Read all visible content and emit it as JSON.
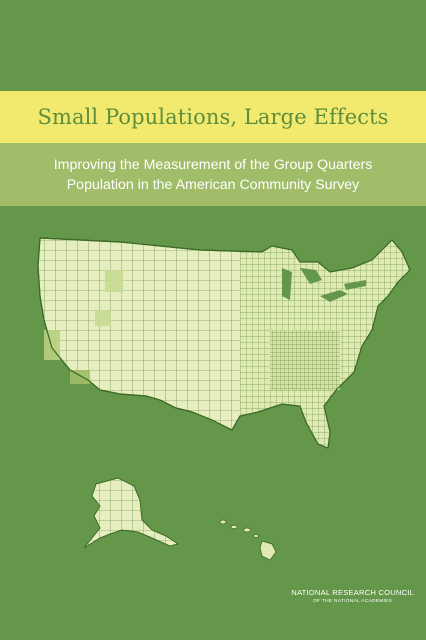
{
  "cover": {
    "title": "Small Populations, Large Effects",
    "subtitle_line1": "Improving the Measurement of the Group Quarters",
    "subtitle_line2": "Population in the American Community Survey",
    "publisher": "NATIONAL RESEARCH COUNCIL",
    "publisher_sub": "OF THE NATIONAL ACADEMIES"
  },
  "colors": {
    "background": "#64974a",
    "title_band": "#f1ea6e",
    "subtitle_band": "#a2bd69",
    "title_text": "#5e8e3d",
    "map_fill": "#dfeab3",
    "map_border": "#3c6a27",
    "map_dark": "#7ea64f"
  },
  "map": {
    "subject": "US county map",
    "regions": [
      "contiguous-us",
      "alaska",
      "hawaii"
    ]
  }
}
